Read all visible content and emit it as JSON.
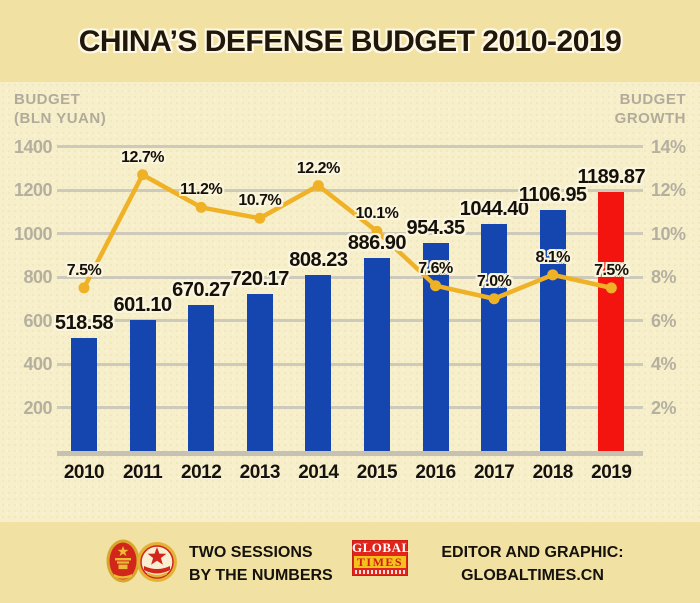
{
  "title": "CHINA’S DEFENSE BUDGET 2010-2019",
  "axes": {
    "left_title_1": "BUDGET",
    "left_title_2": "(BLN YUAN)",
    "right_title_1": "BUDGET",
    "right_title_2": "GROWTH"
  },
  "chart_data": {
    "type": "bar",
    "title": "China’s defense budget 2010-2019",
    "categories": [
      "2010",
      "2011",
      "2012",
      "2013",
      "2014",
      "2015",
      "2016",
      "2017",
      "2018",
      "2019"
    ],
    "series": [
      {
        "name": "Defense budget (bln yuan)",
        "type": "bar",
        "axis": "left",
        "values": [
          518.58,
          601.1,
          670.27,
          720.17,
          808.23,
          886.9,
          954.35,
          1044.4,
          1106.95,
          1189.87
        ],
        "labels": [
          "518.58",
          "601.10",
          "670.27",
          "720.17",
          "808.23",
          "886.90",
          "954.35",
          "1044.40",
          "1106.95",
          "1189.87"
        ]
      },
      {
        "name": "Budget growth (%)",
        "type": "line",
        "axis": "right",
        "values": [
          7.5,
          12.7,
          11.2,
          10.7,
          12.2,
          10.1,
          7.6,
          7.0,
          8.1,
          7.5
        ],
        "labels": [
          "7.5%",
          "12.7%",
          "11.2%",
          "10.7%",
          "12.2%",
          "10.1%",
          "7.6%",
          "7.0%",
          "8.1%",
          "7.5%"
        ]
      }
    ],
    "left_axis": {
      "label": "BUDGET (BLN YUAN)",
      "range": [
        0,
        1400
      ],
      "ticks": [
        1400,
        1200,
        1000,
        800,
        600,
        400,
        200
      ],
      "tick_labels": [
        "1400",
        "1200",
        "1000",
        "800",
        "600",
        "400",
        "200"
      ]
    },
    "right_axis": {
      "label": "BUDGET GROWTH",
      "range": [
        0,
        14
      ],
      "ticks": [
        14,
        12,
        10,
        8,
        6,
        4,
        2
      ],
      "tick_labels": [
        "14%",
        "12%",
        "10%",
        "8%",
        "6%",
        "4%",
        "2%"
      ]
    },
    "grid": true,
    "legend": false,
    "highlight_index": 9,
    "colors": {
      "bar": "#1546b0",
      "bar_highlight": "#f31410",
      "line": "#efb227",
      "grid": "#cdc9bb",
      "tick_text": "#b5afa0"
    }
  },
  "footer": {
    "left_caption_1": "TWO SESSIONS",
    "left_caption_2": "BY THE NUMBERS",
    "logo_line_1": "GLOBAL",
    "logo_line_2": "TIMES",
    "right_caption_1": "EDITOR AND GRAPHIC:",
    "right_caption_2": "GLOBALTIMES.CN"
  }
}
